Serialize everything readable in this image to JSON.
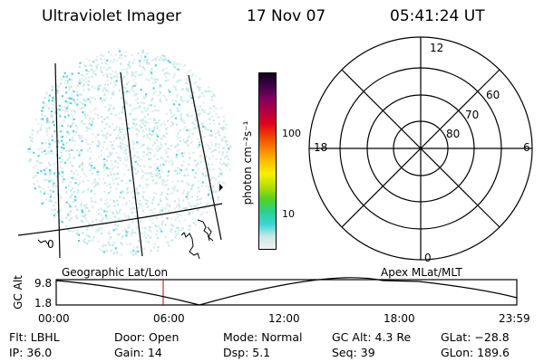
{
  "header": {
    "instrument": "Ultraviolet Imager",
    "date": "17 Nov 07",
    "time": "05:41:24  UT"
  },
  "image_panel": {
    "label": "Geographic Lat/Lon",
    "contour_label": "0",
    "dot_color": "#5ad2dc"
  },
  "colorbar": {
    "unit_label": "photon cm⁻²s⁻¹",
    "scale": "log",
    "tick_labels": [
      "10",
      "100"
    ],
    "colors": [
      "#f0f0f0",
      "#c8e8e6",
      "#38d4d4",
      "#2ad090",
      "#58d020",
      "#b8e000",
      "#f8f000",
      "#f8c000",
      "#f88000",
      "#f04000",
      "#e00020",
      "#b00040",
      "#800060",
      "#400048",
      "#100020"
    ]
  },
  "polar_panel": {
    "label": "Apex  MLat/MLT",
    "mlt_labels": {
      "top": "12",
      "left": "18",
      "right": "6",
      "bottom": "0"
    },
    "mlat_labels": [
      "60",
      "70",
      "80"
    ]
  },
  "altitude_plot": {
    "ylabel": "GC Alt",
    "y_ticks": [
      "9.8",
      "1.8"
    ],
    "x_ticks": [
      "00:00",
      "06:00",
      "12:00",
      "18:00",
      "23:59"
    ],
    "marker_color": "#c00000"
  },
  "status": {
    "row1": [
      "Flt: LBHL",
      "Door: Open",
      "Mode:  Normal",
      "GC Alt:  4.3 Re",
      "GLat:  −28.8"
    ],
    "row2": [
      "IP:  36.0",
      "Gain:  14",
      "Dsp:      5.1",
      "Seq:  39",
      "GLon:  189.6"
    ]
  }
}
